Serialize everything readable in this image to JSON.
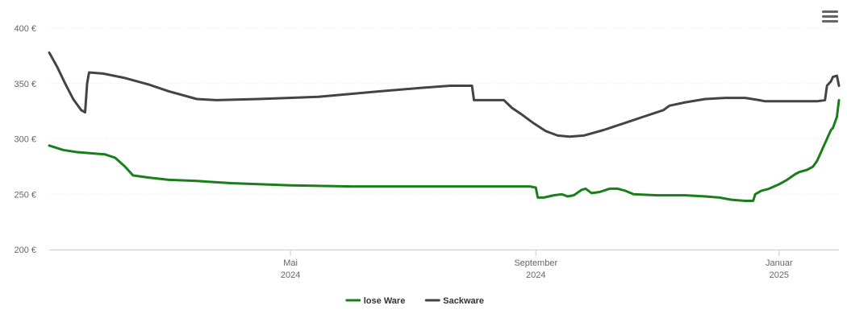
{
  "chart_data": {
    "type": "line",
    "title": "",
    "xlabel": "",
    "ylabel": "",
    "ylim": [
      200,
      400
    ],
    "xlim": [
      "2024-01-01",
      "2025-01-31"
    ],
    "grid": true,
    "legend_position": "bottom-center",
    "y_ticks": [
      {
        "value": 200,
        "label": "200 €"
      },
      {
        "value": 250,
        "label": "250 €"
      },
      {
        "value": 300,
        "label": "300 €"
      },
      {
        "value": 350,
        "label": "350 €"
      },
      {
        "value": 400,
        "label": "400 €"
      }
    ],
    "x_ticks": [
      {
        "date": "2024-05-01",
        "label": "Mai",
        "sublabel": "2024"
      },
      {
        "date": "2024-09-01",
        "label": "September",
        "sublabel": "2024"
      },
      {
        "date": "2025-01-01",
        "label": "Januar",
        "sublabel": "2025"
      }
    ],
    "series": [
      {
        "name": "lose Ware",
        "color": "#1a7f1a",
        "points": [
          [
            "2024-01-01",
            294
          ],
          [
            "2024-01-08",
            290
          ],
          [
            "2024-01-15",
            288
          ],
          [
            "2024-01-22",
            287
          ],
          [
            "2024-01-29",
            286
          ],
          [
            "2024-02-03",
            283
          ],
          [
            "2024-02-08",
            275
          ],
          [
            "2024-02-12",
            267
          ],
          [
            "2024-02-20",
            265
          ],
          [
            "2024-03-01",
            263
          ],
          [
            "2024-03-15",
            262
          ],
          [
            "2024-04-01",
            260
          ],
          [
            "2024-05-01",
            258
          ],
          [
            "2024-06-01",
            257
          ],
          [
            "2024-07-01",
            257
          ],
          [
            "2024-08-01",
            257
          ],
          [
            "2024-08-29",
            257
          ],
          [
            "2024-09-01",
            256
          ],
          [
            "2024-09-02",
            247
          ],
          [
            "2024-09-05",
            247
          ],
          [
            "2024-09-10",
            249
          ],
          [
            "2024-09-14",
            250
          ],
          [
            "2024-09-17",
            248
          ],
          [
            "2024-09-20",
            249
          ],
          [
            "2024-09-24",
            254
          ],
          [
            "2024-09-26",
            255
          ],
          [
            "2024-09-29",
            251
          ],
          [
            "2024-10-03",
            252
          ],
          [
            "2024-10-08",
            255
          ],
          [
            "2024-10-12",
            255
          ],
          [
            "2024-10-16",
            253
          ],
          [
            "2024-10-20",
            250
          ],
          [
            "2024-11-01",
            249
          ],
          [
            "2024-11-15",
            249
          ],
          [
            "2024-11-25",
            248
          ],
          [
            "2024-12-02",
            247
          ],
          [
            "2024-12-08",
            245
          ],
          [
            "2024-12-15",
            244
          ],
          [
            "2024-12-19",
            244
          ],
          [
            "2024-12-20",
            250
          ],
          [
            "2024-12-23",
            253
          ],
          [
            "2024-12-27",
            255
          ],
          [
            "2025-01-01",
            259
          ],
          [
            "2025-01-05",
            263
          ],
          [
            "2025-01-09",
            268
          ],
          [
            "2025-01-11",
            270
          ],
          [
            "2025-01-15",
            272
          ],
          [
            "2025-01-18",
            275
          ],
          [
            "2025-01-20",
            280
          ],
          [
            "2025-01-22",
            288
          ],
          [
            "2025-01-23",
            292
          ],
          [
            "2025-01-25",
            300
          ],
          [
            "2025-01-27",
            308
          ],
          [
            "2025-01-28",
            310
          ],
          [
            "2025-01-29",
            315
          ],
          [
            "2025-01-30",
            320
          ],
          [
            "2025-01-31",
            335
          ]
        ]
      },
      {
        "name": "Sackware",
        "color": "#444444",
        "points": [
          [
            "2024-01-01",
            378
          ],
          [
            "2024-01-05",
            365
          ],
          [
            "2024-01-09",
            350
          ],
          [
            "2024-01-13",
            336
          ],
          [
            "2024-01-17",
            326
          ],
          [
            "2024-01-19",
            324
          ],
          [
            "2024-01-20",
            350
          ],
          [
            "2024-01-21",
            360
          ],
          [
            "2024-01-28",
            359
          ],
          [
            "2024-02-08",
            355
          ],
          [
            "2024-02-20",
            349
          ],
          [
            "2024-03-01",
            343
          ],
          [
            "2024-03-15",
            336
          ],
          [
            "2024-03-25",
            335
          ],
          [
            "2024-04-15",
            336
          ],
          [
            "2024-05-15",
            338
          ],
          [
            "2024-06-15",
            343
          ],
          [
            "2024-07-05",
            346
          ],
          [
            "2024-07-20",
            348
          ],
          [
            "2024-07-31",
            348
          ],
          [
            "2024-08-01",
            335
          ],
          [
            "2024-08-16",
            335
          ],
          [
            "2024-08-20",
            328
          ],
          [
            "2024-08-25",
            322
          ],
          [
            "2024-08-31",
            314
          ],
          [
            "2024-09-06",
            307
          ],
          [
            "2024-09-12",
            303
          ],
          [
            "2024-09-18",
            302
          ],
          [
            "2024-09-25",
            303
          ],
          [
            "2024-10-05",
            308
          ],
          [
            "2024-10-15",
            314
          ],
          [
            "2024-10-25",
            320
          ],
          [
            "2024-11-04",
            326
          ],
          [
            "2024-11-07",
            330
          ],
          [
            "2024-11-15",
            333
          ],
          [
            "2024-11-25",
            336
          ],
          [
            "2024-12-05",
            337
          ],
          [
            "2024-12-15",
            337
          ],
          [
            "2024-12-22",
            335
          ],
          [
            "2024-12-25",
            334
          ],
          [
            "2025-01-05",
            334
          ],
          [
            "2025-01-15",
            334
          ],
          [
            "2025-01-20",
            334
          ],
          [
            "2025-01-24",
            335
          ],
          [
            "2025-01-25",
            348
          ],
          [
            "2025-01-26",
            350
          ],
          [
            "2025-01-27",
            352
          ],
          [
            "2025-01-28",
            356
          ],
          [
            "2025-01-30",
            357
          ],
          [
            "2025-01-31",
            348
          ]
        ]
      }
    ]
  },
  "menu": {
    "icon": "hamburger-menu-icon"
  }
}
